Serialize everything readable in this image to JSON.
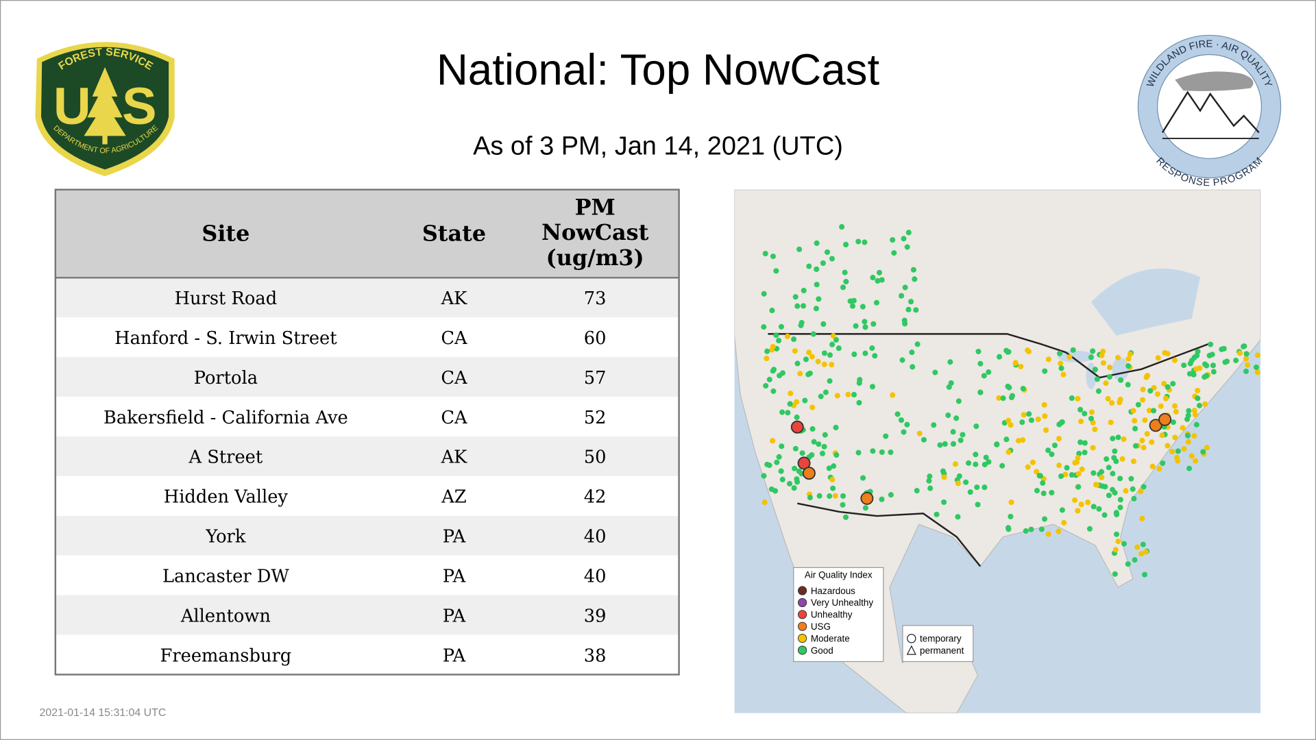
{
  "header": {
    "title": "National: Top NowCast",
    "subtitle": "As of  3 PM, Jan 14, 2021 (UTC)"
  },
  "logos": {
    "left": {
      "top": "FOREST SERVICE",
      "letter_left": "U",
      "letter_right": "S",
      "bottom": "DEPARTMENT OF AGRICULTURE"
    },
    "right": {
      "top": "WILDLAND FIRE · AIR QUALITY",
      "bottom": "RESPONSE PROGRAM"
    }
  },
  "table": {
    "columns": [
      "Site",
      "State",
      [
        "PM",
        "NowCast",
        "(ug/m3)"
      ]
    ],
    "rows": [
      [
        "Hurst Road",
        "AK",
        73
      ],
      [
        "Hanford - S. Irwin Street",
        "CA",
        60
      ],
      [
        "Portola",
        "CA",
        57
      ],
      [
        "Bakersfield - California Ave",
        "CA",
        52
      ],
      [
        "A Street",
        "AK",
        50
      ],
      [
        "Hidden Valley",
        "AZ",
        42
      ],
      [
        "York",
        "PA",
        40
      ],
      [
        "Lancaster DW",
        "PA",
        40
      ],
      [
        "Allentown",
        "PA",
        39
      ],
      [
        "Freemansburg",
        "PA",
        38
      ]
    ]
  },
  "map": {
    "legend": {
      "title": "Air Quality Index",
      "items": [
        {
          "label": "Hazardous",
          "color": "#6e2a22"
        },
        {
          "label": "Very Unhealthy",
          "color": "#8e44ad"
        },
        {
          "label": "Unhealthy",
          "color": "#e8453c"
        },
        {
          "label": "USG",
          "color": "#ee7f1b"
        },
        {
          "label": "Moderate",
          "color": "#f3c300"
        },
        {
          "label": "Good",
          "color": "#2fc862"
        }
      ]
    },
    "shapes": [
      "temporary",
      "permanent"
    ]
  },
  "timestamp": "2021-01-14 15:31:04 UTC"
}
